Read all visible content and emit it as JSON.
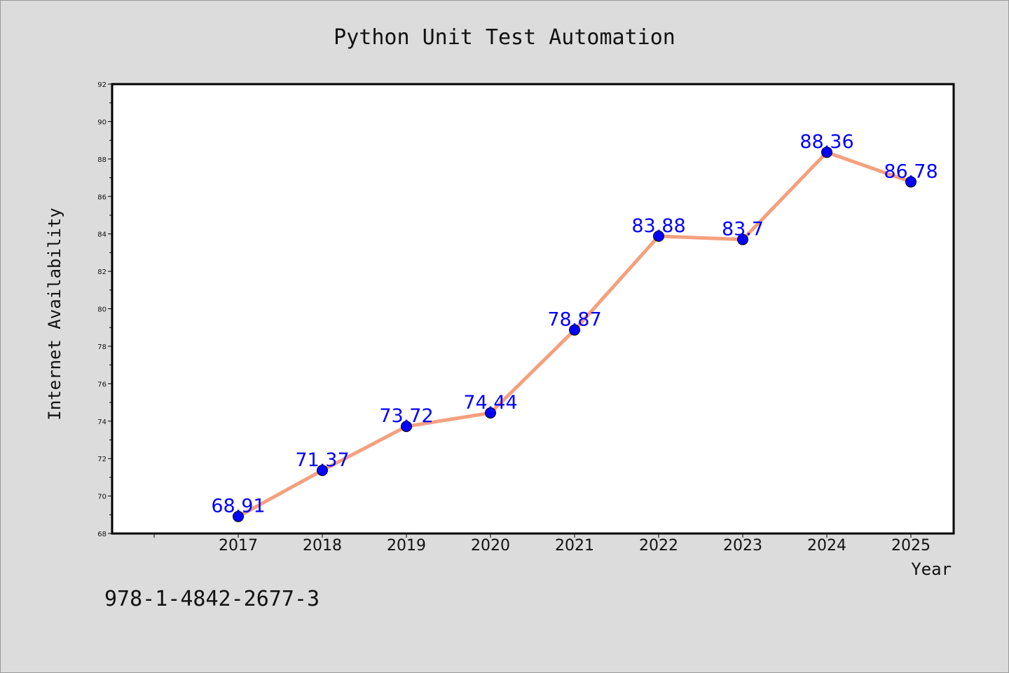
{
  "chart_data": {
    "type": "line",
    "title": "Python Unit Test Automation",
    "xlabel": "Year",
    "ylabel": "Internet Availability",
    "footer_text": "978-1-4842-2677-3",
    "categories": [
      "2017",
      "2018",
      "2019",
      "2020",
      "2021",
      "2022",
      "2023",
      "2024",
      "2025"
    ],
    "series": [
      {
        "values": [
          68.91,
          71.37,
          73.72,
          74.44,
          78.87,
          83.88,
          83.7,
          88.36,
          86.78
        ],
        "labels": [
          "68.91",
          "71.37",
          "73.72",
          "74.44",
          "78.87",
          "83.88",
          "83.7",
          "88.36",
          "86.78"
        ],
        "line_color": "#f4a07e",
        "marker_color": "#0000ff",
        "label_color": "#0000ff"
      }
    ],
    "ylim": [
      68,
      92
    ],
    "yticks": [
      "68",
      "70",
      "72",
      "74",
      "76",
      "78",
      "80",
      "82",
      "84",
      "86",
      "88",
      "90",
      "92"
    ],
    "grid": false,
    "legend": "none"
  }
}
